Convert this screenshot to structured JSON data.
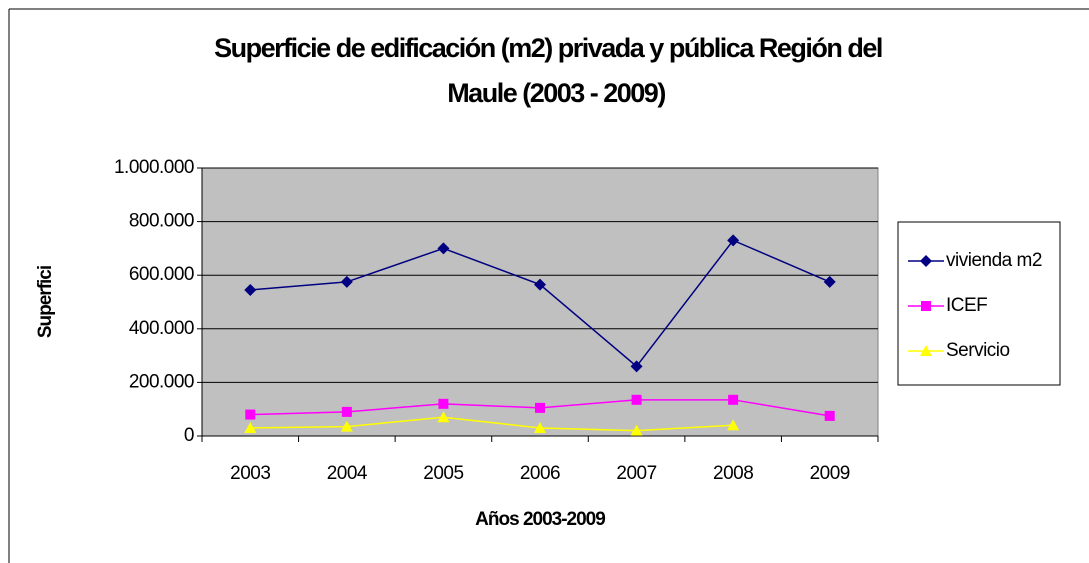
{
  "chart_data": {
    "type": "line",
    "title": [
      "Superficie de edificación (m2) privada y pública Región del",
      "Maule (2003 - 2009)"
    ],
    "x_label": "Años 2003-2009",
    "y_label": "Superfici",
    "categories": [
      "2003",
      "2004",
      "2005",
      "2006",
      "2007",
      "2008",
      "2009"
    ],
    "series": [
      {
        "name": "vivienda m2",
        "color": "#000080",
        "marker": "diamond",
        "values": [
          545000,
          575000,
          700000,
          565000,
          260000,
          730000,
          575000
        ]
      },
      {
        "name": "ICEF",
        "color": "#ff00ff",
        "marker": "square",
        "values": [
          80000,
          90000,
          120000,
          105000,
          135000,
          135000,
          75000
        ]
      },
      {
        "name": "Servicio",
        "color": "#ffff00",
        "marker": "triangle",
        "values": [
          30000,
          35000,
          70000,
          30000,
          20000,
          40000,
          null
        ]
      }
    ],
    "ylim": [
      0,
      1000000
    ],
    "yticks": [
      0,
      {
        "value": 200000,
        "label": "200.000"
      },
      {
        "value": 400000,
        "label": "400.000"
      },
      {
        "value": 600000,
        "label": "600.000"
      },
      {
        "value": 800000,
        "label": "800.000"
      },
      {
        "value": 1000000,
        "label": "1.000.000"
      }
    ],
    "grid": true,
    "plot_background": "#c0c0c0",
    "legend": "right"
  }
}
